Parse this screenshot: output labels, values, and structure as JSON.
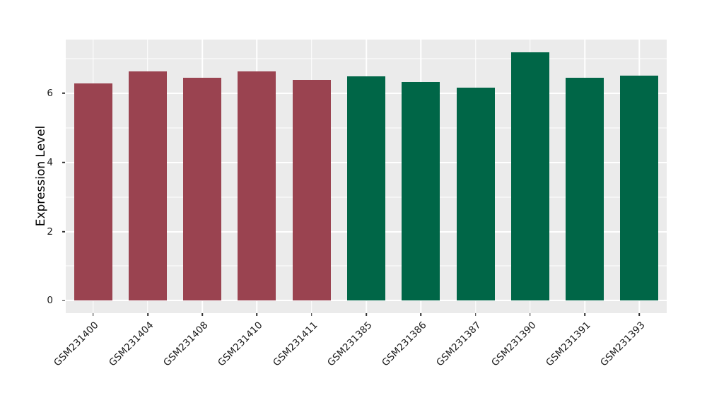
{
  "chart_data": {
    "type": "bar",
    "title": "",
    "xlabel": "",
    "ylabel": "Expression Level",
    "categories": [
      "GSM231400",
      "GSM231404",
      "GSM231408",
      "GSM231410",
      "GSM231411",
      "GSM231385",
      "GSM231386",
      "GSM231387",
      "GSM231390",
      "GSM231391",
      "GSM231393"
    ],
    "values": [
      6.29,
      6.63,
      6.44,
      6.63,
      6.39,
      6.49,
      6.32,
      6.16,
      7.19,
      6.45,
      6.5
    ],
    "groups": [
      "maroon",
      "maroon",
      "maroon",
      "maroon",
      "maroon",
      "green",
      "green",
      "green",
      "green",
      "green",
      "green"
    ],
    "group_colors": {
      "maroon": "#9A4350",
      "green": "#006647"
    },
    "yticks": [
      0,
      2,
      4,
      6
    ],
    "minor_yticks": [
      1,
      3,
      5,
      7
    ],
    "ylim": [
      -0.36,
      7.55
    ],
    "bar_width_frac": 0.7,
    "x_label_angle_deg": 45,
    "legend": "none",
    "grid": "on",
    "panel_bg": "#EBEBEB",
    "grid_color": "#FFFFFF",
    "tick_color": "#333333",
    "axis_text_color": "#1A1A1A"
  }
}
